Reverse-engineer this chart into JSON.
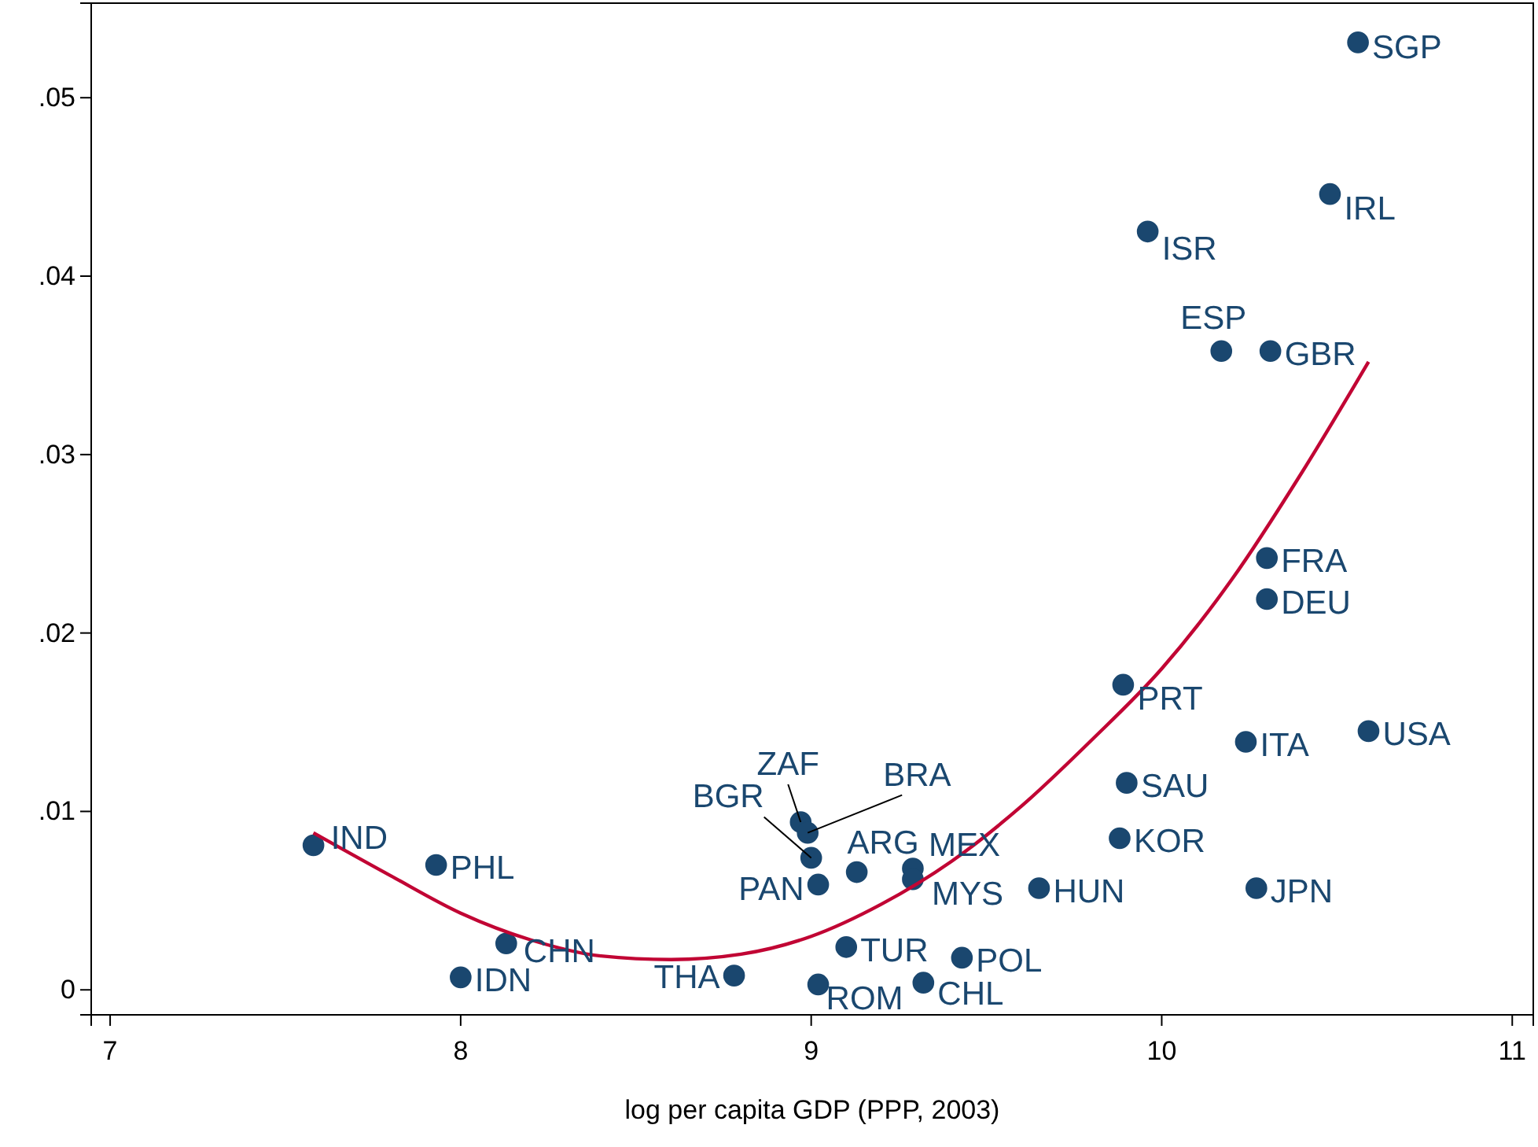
{
  "chart_data": {
    "type": "scatter",
    "xlabel": "log per capita GDP (PPP, 2003)",
    "xlim": [
      6.946,
      11.06
    ],
    "ylim": [
      -0.0014,
      0.0553
    ],
    "xticks": [
      7,
      8,
      9,
      10,
      11
    ],
    "yticks": [
      0,
      {
        "value": 0.01,
        "label": ".01"
      },
      {
        "value": 0.02,
        "label": ".02"
      },
      {
        "value": 0.03,
        "label": ".03"
      },
      {
        "value": 0.04,
        "label": ".04"
      },
      {
        "value": 0.05,
        "label": ".05"
      }
    ],
    "grid": false,
    "marker": "circle",
    "series": [
      {
        "type": "scatter",
        "color": "#1a476f",
        "x": [
          7.58,
          7.93,
          8.13,
          8.0,
          8.78,
          9.0,
          8.97,
          8.99,
          9.02,
          9.13,
          9.29,
          9.29,
          9.1,
          9.02,
          9.32,
          9.43,
          9.65,
          9.88,
          9.9,
          10.27,
          9.89,
          10.24,
          10.59,
          10.3,
          10.3,
          10.17,
          10.31,
          9.96,
          10.48,
          10.56
        ],
        "values": [
          0.0081,
          0.007,
          0.0026,
          0.0007,
          0.0008,
          0.0074,
          0.0094,
          0.0088,
          0.0059,
          0.0066,
          0.0068,
          0.0062,
          0.0024,
          0.0003,
          0.0004,
          0.0018,
          0.0057,
          0.0085,
          0.0116,
          0.0057,
          0.0171,
          0.0139,
          0.0145,
          0.0242,
          0.0219,
          0.0358,
          0.0358,
          0.0425,
          0.0446,
          0.0531
        ]
      },
      {
        "type": "line",
        "color": "#c10534",
        "line_style": "solid",
        "marker": "none",
        "x": [
          7.58,
          7.8,
          8.0,
          8.2,
          8.4,
          8.6,
          8.8,
          9.0,
          9.2,
          9.4,
          9.6,
          9.8,
          10.0,
          10.2,
          10.4,
          10.59
        ],
        "values": [
          0.0088,
          0.0064,
          0.0043,
          0.0028,
          0.0019,
          0.0017,
          0.002,
          0.003,
          0.0048,
          0.0072,
          0.0103,
          0.014,
          0.018,
          0.023,
          0.029,
          0.0352
        ]
      }
    ],
    "annotations": [
      {
        "text": "IND",
        "x": 7.58,
        "y": 0.0081
      },
      {
        "text": "PHL",
        "x": 7.93,
        "y": 0.007
      },
      {
        "text": "CHN",
        "x": 8.13,
        "y": 0.0026
      },
      {
        "text": "IDN",
        "x": 8.0,
        "y": 0.0007
      },
      {
        "text": "THA",
        "x": 8.78,
        "y": 0.0008
      },
      {
        "text": "BGR",
        "x": 9.0,
        "y": 0.0074
      },
      {
        "text": "ZAF",
        "x": 8.97,
        "y": 0.0094
      },
      {
        "text": "BRA",
        "x": 8.99,
        "y": 0.0088
      },
      {
        "text": "PAN",
        "x": 9.02,
        "y": 0.0059
      },
      {
        "text": "ARG",
        "x": 9.13,
        "y": 0.0066
      },
      {
        "text": "MEX",
        "x": 9.29,
        "y": 0.0068
      },
      {
        "text": "MYS",
        "x": 9.29,
        "y": 0.0062
      },
      {
        "text": "TUR",
        "x": 9.1,
        "y": 0.0024
      },
      {
        "text": "ROM",
        "x": 9.02,
        "y": 0.0003
      },
      {
        "text": "CHL",
        "x": 9.32,
        "y": 0.0004
      },
      {
        "text": "POL",
        "x": 9.43,
        "y": 0.0018
      },
      {
        "text": "HUN",
        "x": 9.65,
        "y": 0.0057
      },
      {
        "text": "KOR",
        "x": 9.88,
        "y": 0.0085
      },
      {
        "text": "SAU",
        "x": 9.9,
        "y": 0.0116
      },
      {
        "text": "JPN",
        "x": 10.27,
        "y": 0.0057
      },
      {
        "text": "PRT",
        "x": 9.89,
        "y": 0.0171
      },
      {
        "text": "ITA",
        "x": 10.24,
        "y": 0.0139
      },
      {
        "text": "USA",
        "x": 10.59,
        "y": 0.0145
      },
      {
        "text": "FRA",
        "x": 10.3,
        "y": 0.0242
      },
      {
        "text": "DEU",
        "x": 10.3,
        "y": 0.0219
      },
      {
        "text": "ESP",
        "x": 10.17,
        "y": 0.0358
      },
      {
        "text": "GBR",
        "x": 10.31,
        "y": 0.0358
      },
      {
        "text": "ISR",
        "x": 9.96,
        "y": 0.0425
      },
      {
        "text": "IRL",
        "x": 10.48,
        "y": 0.0446
      },
      {
        "text": "SGP",
        "x": 10.56,
        "y": 0.0531
      }
    ]
  }
}
